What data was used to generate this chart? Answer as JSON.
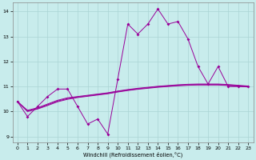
{
  "xlabel": "Windchill (Refroidissement éolien,°C)",
  "background_color": "#c8ecec",
  "grid_color": "#aad4d4",
  "line_color": "#990099",
  "xlim": [
    -0.5,
    23.5
  ],
  "ylim": [
    8.75,
    14.35
  ],
  "yticks": [
    9,
    10,
    11,
    12,
    13,
    14
  ],
  "xticks": [
    0,
    1,
    2,
    3,
    4,
    5,
    6,
    7,
    8,
    9,
    10,
    11,
    12,
    13,
    14,
    15,
    16,
    17,
    18,
    19,
    20,
    21,
    22,
    23
  ],
  "marker_curve": [
    10.4,
    9.8,
    10.2,
    10.6,
    10.9,
    10.9,
    10.2,
    9.5,
    9.7,
    9.1,
    11.3,
    13.5,
    13.1,
    13.5,
    14.1,
    13.5,
    13.6,
    12.9,
    11.8,
    11.1,
    11.8,
    11.0,
    11.0,
    11.0
  ],
  "smooth_curves": [
    [
      10.4,
      10.05,
      10.15,
      10.3,
      10.45,
      10.55,
      10.6,
      10.65,
      10.7,
      10.75,
      10.82,
      10.88,
      10.93,
      10.97,
      11.01,
      11.04,
      11.07,
      11.09,
      11.1,
      11.1,
      11.1,
      11.08,
      11.05,
      11.02
    ],
    [
      10.4,
      10.02,
      10.12,
      10.27,
      10.42,
      10.52,
      10.58,
      10.63,
      10.68,
      10.73,
      10.8,
      10.86,
      10.91,
      10.95,
      10.99,
      11.02,
      11.05,
      11.07,
      11.08,
      11.08,
      11.08,
      11.06,
      11.03,
      11.0
    ],
    [
      10.4,
      10.0,
      10.1,
      10.24,
      10.39,
      10.49,
      10.56,
      10.61,
      10.66,
      10.71,
      10.78,
      10.84,
      10.89,
      10.93,
      10.97,
      11.0,
      11.03,
      11.05,
      11.06,
      11.06,
      11.06,
      11.04,
      11.01,
      10.98
    ]
  ]
}
